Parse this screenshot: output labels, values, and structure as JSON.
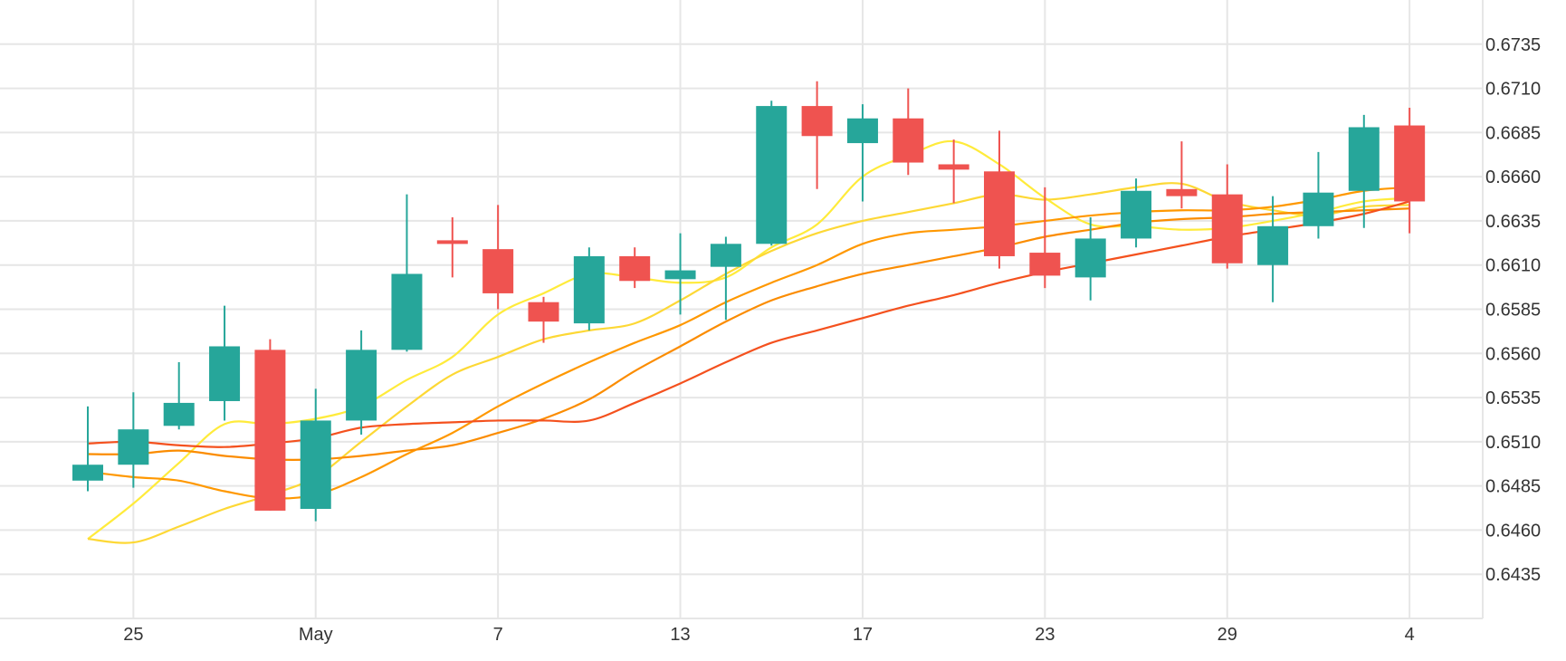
{
  "chart_data": {
    "type": "candlestick",
    "title": "",
    "xlabel": "",
    "ylabel": "",
    "ylim": [
      0.641,
      0.676
    ],
    "y_ticks": [
      "0.6435",
      "0.6460",
      "0.6485",
      "0.6510",
      "0.6535",
      "0.6560",
      "0.6585",
      "0.6610",
      "0.6635",
      "0.6660",
      "0.6685",
      "0.6710",
      "0.6735"
    ],
    "x_ticks": [
      {
        "label": "25",
        "index": 1
      },
      {
        "label": "May",
        "index": 5
      },
      {
        "label": "7",
        "index": 9
      },
      {
        "label": "13",
        "index": 13
      },
      {
        "label": "17",
        "index": 17
      },
      {
        "label": "23",
        "index": 21
      },
      {
        "label": "29",
        "index": 25
      },
      {
        "label": "4",
        "index": 29
      }
    ],
    "grid": true,
    "legend": "none",
    "colors": {
      "up": "#26a69a",
      "down": "#ef5350",
      "grid": "#e6e6e6"
    },
    "candles": [
      {
        "o": 0.6488,
        "h": 0.653,
        "l": 0.6482,
        "c": 0.6497
      },
      {
        "o": 0.6497,
        "h": 0.6538,
        "l": 0.6484,
        "c": 0.6517
      },
      {
        "o": 0.6519,
        "h": 0.6555,
        "l": 0.6517,
        "c": 0.6532
      },
      {
        "o": 0.6533,
        "h": 0.6587,
        "l": 0.6522,
        "c": 0.6564
      },
      {
        "o": 0.6562,
        "h": 0.6568,
        "l": 0.6471,
        "c": 0.6471
      },
      {
        "o": 0.6472,
        "h": 0.654,
        "l": 0.6465,
        "c": 0.6522
      },
      {
        "o": 0.6522,
        "h": 0.6573,
        "l": 0.6514,
        "c": 0.6562
      },
      {
        "o": 0.6562,
        "h": 0.665,
        "l": 0.6561,
        "c": 0.6605
      },
      {
        "o": 0.6624,
        "h": 0.6637,
        "l": 0.6603,
        "c": 0.6622
      },
      {
        "o": 0.6619,
        "h": 0.6644,
        "l": 0.6585,
        "c": 0.6594
      },
      {
        "o": 0.6589,
        "h": 0.6592,
        "l": 0.6566,
        "c": 0.6578
      },
      {
        "o": 0.6577,
        "h": 0.662,
        "l": 0.6573,
        "c": 0.6615
      },
      {
        "o": 0.6615,
        "h": 0.662,
        "l": 0.6597,
        "c": 0.6601
      },
      {
        "o": 0.6602,
        "h": 0.6628,
        "l": 0.6582,
        "c": 0.6607
      },
      {
        "o": 0.6609,
        "h": 0.6626,
        "l": 0.6579,
        "c": 0.6622
      },
      {
        "o": 0.6622,
        "h": 0.6703,
        "l": 0.6621,
        "c": 0.67
      },
      {
        "o": 0.67,
        "h": 0.6714,
        "l": 0.6653,
        "c": 0.6683
      },
      {
        "o": 0.6679,
        "h": 0.6701,
        "l": 0.6646,
        "c": 0.6693
      },
      {
        "o": 0.6693,
        "h": 0.671,
        "l": 0.6661,
        "c": 0.6668
      },
      {
        "o": 0.6667,
        "h": 0.6681,
        "l": 0.6645,
        "c": 0.6664
      },
      {
        "o": 0.6663,
        "h": 0.6686,
        "l": 0.6608,
        "c": 0.6615
      },
      {
        "o": 0.6617,
        "h": 0.6654,
        "l": 0.6597,
        "c": 0.6604
      },
      {
        "o": 0.6603,
        "h": 0.6637,
        "l": 0.659,
        "c": 0.6625
      },
      {
        "o": 0.6625,
        "h": 0.6659,
        "l": 0.662,
        "c": 0.6652
      },
      {
        "o": 0.6653,
        "h": 0.668,
        "l": 0.6642,
        "c": 0.6649
      },
      {
        "o": 0.665,
        "h": 0.6667,
        "l": 0.6608,
        "c": 0.6611
      },
      {
        "o": 0.661,
        "h": 0.6649,
        "l": 0.6589,
        "c": 0.6632
      },
      {
        "o": 0.6632,
        "h": 0.6674,
        "l": 0.6625,
        "c": 0.6651
      },
      {
        "o": 0.6652,
        "h": 0.6695,
        "l": 0.6631,
        "c": 0.6688
      },
      {
        "o": 0.6689,
        "h": 0.6699,
        "l": 0.6628,
        "c": 0.6646
      }
    ],
    "series": [
      {
        "color": "#ffeb3b",
        "values": [
          0.6455,
          0.6475,
          0.6498,
          0.652,
          0.652,
          0.6523,
          0.653,
          0.6545,
          0.6558,
          0.6582,
          0.6594,
          0.6605,
          0.6603,
          0.66,
          0.6603,
          0.662,
          0.6633,
          0.666,
          0.6672,
          0.668,
          0.6667,
          0.6648,
          0.6633,
          0.6632,
          0.663,
          0.6631,
          0.6635,
          0.664,
          0.6646,
          0.6648
        ]
      },
      {
        "color": "#fdd835",
        "values": [
          0.6455,
          0.6453,
          0.6462,
          0.6472,
          0.648,
          0.649,
          0.651,
          0.653,
          0.6548,
          0.6558,
          0.6568,
          0.6573,
          0.6577,
          0.659,
          0.6605,
          0.6618,
          0.6628,
          0.6635,
          0.664,
          0.6645,
          0.665,
          0.6647,
          0.665,
          0.6654,
          0.6656,
          0.6646,
          0.6641,
          0.6638,
          0.6643,
          0.6644
        ]
      },
      {
        "color": "#ff9800",
        "values": [
          0.6493,
          0.649,
          0.6488,
          0.6482,
          0.6478,
          0.648,
          0.649,
          0.6503,
          0.6515,
          0.653,
          0.6543,
          0.6555,
          0.6566,
          0.6576,
          0.6589,
          0.66,
          0.661,
          0.6622,
          0.6628,
          0.663,
          0.6632,
          0.6635,
          0.6638,
          0.664,
          0.6641,
          0.6641,
          0.6643,
          0.6647,
          0.6652,
          0.6654
        ]
      },
      {
        "color": "#fb8c00",
        "values": [
          0.6503,
          0.6503,
          0.6505,
          0.6502,
          0.65,
          0.65,
          0.6502,
          0.6505,
          0.6508,
          0.6515,
          0.6523,
          0.6534,
          0.655,
          0.6564,
          0.6578,
          0.659,
          0.6598,
          0.6605,
          0.661,
          0.6615,
          0.662,
          0.6626,
          0.663,
          0.6634,
          0.6636,
          0.6637,
          0.6639,
          0.664,
          0.6641,
          0.6642
        ]
      },
      {
        "color": "#f4511e",
        "values": [
          0.6509,
          0.651,
          0.6508,
          0.6507,
          0.6509,
          0.6512,
          0.6518,
          0.652,
          0.6521,
          0.6522,
          0.6522,
          0.6522,
          0.6532,
          0.6543,
          0.6555,
          0.6566,
          0.6573,
          0.658,
          0.6587,
          0.6593,
          0.66,
          0.6606,
          0.6611,
          0.6616,
          0.6621,
          0.6626,
          0.663,
          0.6634,
          0.6639,
          0.6646
        ]
      }
    ]
  }
}
